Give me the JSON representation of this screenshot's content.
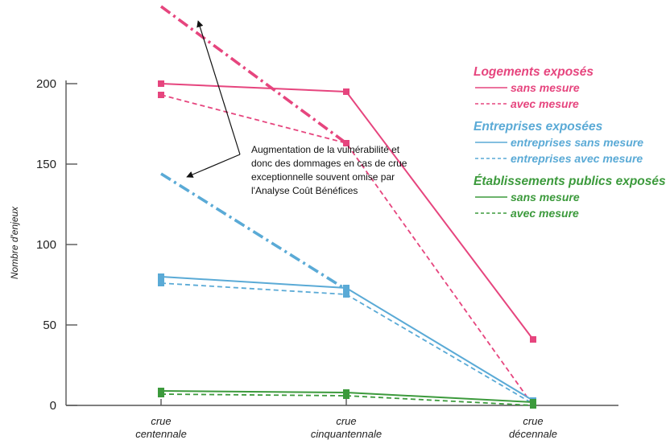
{
  "chart_data": {
    "type": "line",
    "categories": [
      [
        "crue",
        "centennale"
      ],
      [
        "crue",
        "cinquantennale"
      ],
      [
        "crue",
        "décennale"
      ]
    ],
    "ylabel": "Nombre d'enjeux",
    "ylim": [
      0,
      200
    ],
    "yticks": [
      0,
      50,
      100,
      150,
      200
    ],
    "grid": false,
    "legend_position": "right",
    "colors": {
      "logements": "#e6457e",
      "entreprises": "#5aaad6",
      "etablissements": "#3c9a3c"
    },
    "series": [
      {
        "group": "logements",
        "style": "solid",
        "values": [
          200,
          195,
          41
        ]
      },
      {
        "group": "logements",
        "style": "dashed",
        "values": [
          193,
          163,
          0
        ]
      },
      {
        "group": "logements",
        "style": "dashdot",
        "values": [
          248,
          163,
          null
        ]
      },
      {
        "group": "entreprises",
        "style": "solid",
        "values": [
          80,
          73,
          3
        ]
      },
      {
        "group": "entreprises",
        "style": "dashed",
        "values": [
          76,
          69,
          1
        ]
      },
      {
        "group": "entreprises",
        "style": "dashdot",
        "values": [
          144,
          72,
          null
        ]
      },
      {
        "group": "etablissements",
        "style": "solid",
        "values": [
          9,
          8,
          2
        ]
      },
      {
        "group": "etablissements",
        "style": "dashed",
        "values": [
          7,
          6,
          0
        ]
      }
    ],
    "legend": [
      {
        "title": "Logements exposés",
        "group": "logements",
        "items": [
          {
            "label": "sans mesure",
            "style": "solid"
          },
          {
            "label": "avec mesure",
            "style": "dashed"
          }
        ]
      },
      {
        "title": "Entreprises exposées",
        "group": "entreprises",
        "items": [
          {
            "label": "entreprises sans mesure",
            "style": "solid"
          },
          {
            "label": "entreprises avec mesure",
            "style": "dashed"
          }
        ]
      },
      {
        "title": "Établissements publics exposés",
        "group": "etablissements",
        "items": [
          {
            "label": "sans mesure",
            "style": "solid"
          },
          {
            "label": "avec mesure",
            "style": "dashed"
          }
        ]
      }
    ],
    "annotation": {
      "lines": [
        "Augmentation de la vulnérabilité et",
        "donc des dommages en cas de crue",
        "exceptionnelle souvent omise par",
        "l'Analyse Coût Bénéfices"
      ]
    }
  }
}
